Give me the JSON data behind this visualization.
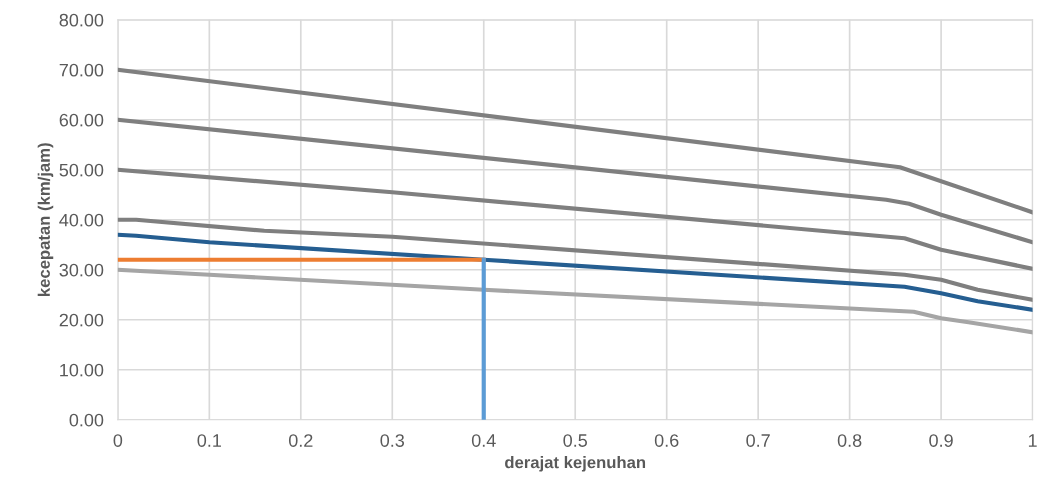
{
  "chart_data": {
    "type": "line",
    "xlabel": "derajat kejenuhan",
    "ylabel": "kecepatan (km/jam)",
    "xlim": [
      0,
      1
    ],
    "xticks": [
      0,
      0.1,
      0.2,
      0.3,
      0.4,
      0.5,
      0.6,
      0.7,
      0.8,
      0.9,
      1
    ],
    "ylim": [
      0,
      80
    ],
    "yticks": [
      {
        "value": 0,
        "label": "0.00"
      },
      {
        "value": 10,
        "label": "10.00"
      },
      {
        "value": 20,
        "label": "20.00"
      },
      {
        "value": 30,
        "label": "30.00"
      },
      {
        "value": 40,
        "label": "40.00"
      },
      {
        "value": 50,
        "label": "50.00"
      },
      {
        "value": 60,
        "label": "60.00"
      },
      {
        "value": 70,
        "label": "70.00"
      },
      {
        "value": 80,
        "label": "80.00"
      }
    ],
    "grid": true,
    "legend": false,
    "marker": "none",
    "line_style": "solid",
    "series": [
      {
        "color": "#7f7f7f",
        "x": [
          0,
          0.855,
          1
        ],
        "values": [
          70,
          50.5,
          41.5
        ]
      },
      {
        "color": "#7f7f7f",
        "x": [
          0,
          0.84,
          0.865,
          0.9,
          1
        ],
        "values": [
          60,
          44,
          43.2,
          41,
          35.5
        ]
      },
      {
        "color": "#7f7f7f",
        "x": [
          0,
          0.3,
          0.86,
          0.9,
          1
        ],
        "values": [
          50,
          45.5,
          36.3,
          34,
          30.2
        ]
      },
      {
        "color": "#7f7f7f",
        "x": [
          0,
          0.02,
          0.16,
          0.3,
          0.86,
          0.88,
          0.9,
          0.94,
          1
        ],
        "values": [
          40,
          40,
          37.8,
          36.6,
          29,
          28.5,
          28,
          26,
          24
        ]
      },
      {
        "color": "#255e91",
        "x": [
          0,
          0.02,
          0.1,
          0.4,
          0.86,
          0.9,
          0.94,
          1
        ],
        "values": [
          37,
          36.8,
          35.5,
          32,
          26.6,
          25.3,
          23.7,
          22
        ]
      },
      {
        "color": "#a5a5a5",
        "x": [
          0,
          0.1,
          0.4,
          0.87,
          0.9,
          0.93,
          1
        ],
        "values": [
          30,
          29,
          26,
          21.6,
          20.3,
          19.5,
          17.5
        ]
      },
      {
        "color": "#ed7d31",
        "x": [
          0,
          0.4
        ],
        "values": [
          32,
          32
        ]
      },
      {
        "color": "#5b9bd5",
        "x": [
          0.4,
          0.4
        ],
        "values": [
          0,
          32
        ]
      }
    ]
  }
}
